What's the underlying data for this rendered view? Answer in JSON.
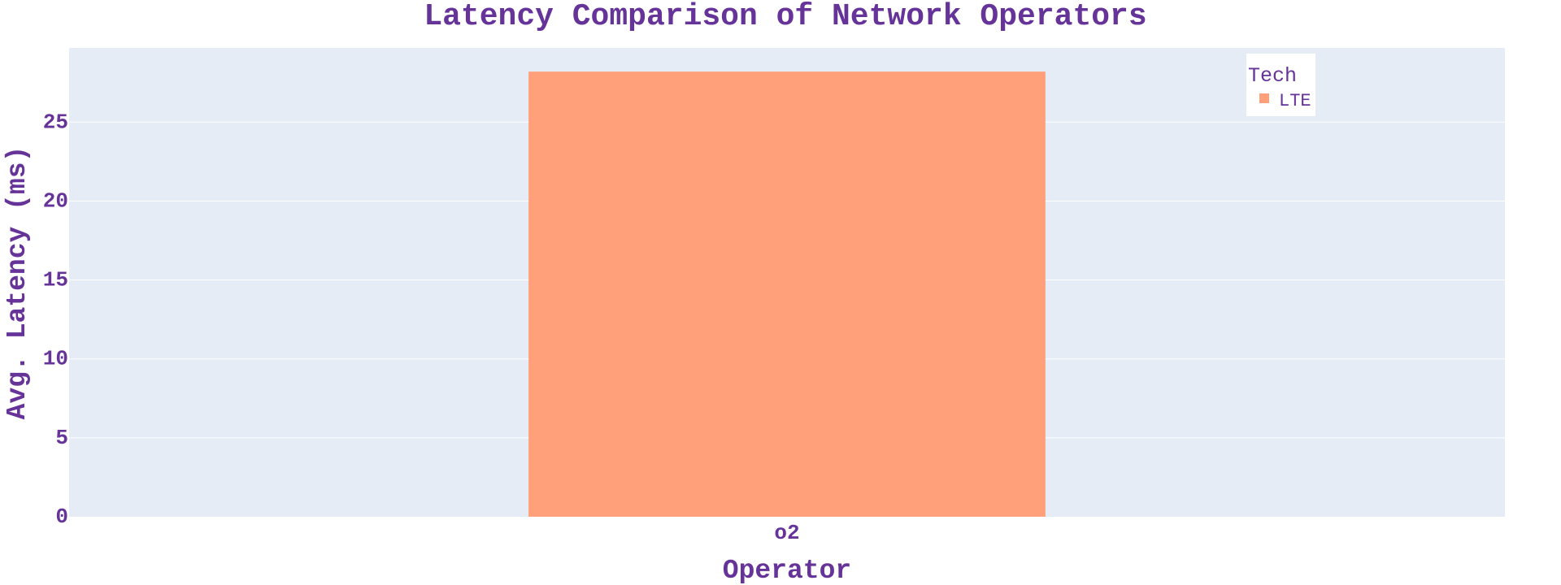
{
  "chart_data": {
    "type": "bar",
    "title": "Latency Comparison of Network Operators",
    "xlabel": "Operator",
    "ylabel": "Avg. Latency (ms)",
    "categories": [
      "o2"
    ],
    "series": [
      {
        "name": "LTE",
        "values": [
          28.2
        ],
        "color": "#FFA07A"
      }
    ],
    "ylim": [
      0,
      29.7
    ],
    "yticks": [
      0,
      5,
      10,
      15,
      20,
      25
    ],
    "grid": true,
    "legend": {
      "title": "Tech",
      "position": "top-right"
    },
    "colors": {
      "text": "#663399",
      "plot_background": "#E5ECF6",
      "grid": "#FFFFFF",
      "legend_background": "#FFFFFF"
    }
  }
}
